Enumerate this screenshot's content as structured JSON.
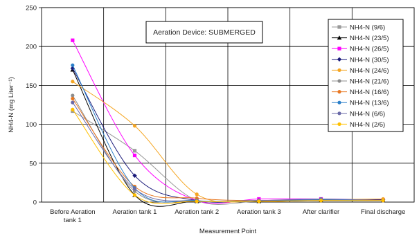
{
  "chart_data": {
    "type": "line",
    "annotation": "Aeration Device: SUBMERGED",
    "xlabel": "Measurement Point",
    "ylabel": "NH4-N (mg Liter⁻¹)",
    "ylim": [
      0,
      250
    ],
    "yticks": [
      0,
      50,
      100,
      150,
      200,
      250
    ],
    "grid": true,
    "legend_position": "top-right",
    "categories": [
      [
        "Before Aeration",
        "tank 1"
      ],
      [
        "Aeration tank 1"
      ],
      [
        "Aeration tank 2"
      ],
      [
        "Aeration tank 3"
      ],
      [
        "After clarifier"
      ],
      [
        "Final discharge"
      ]
    ],
    "series": [
      {
        "name": "NH4-N (9/6)",
        "color": "#9a9a9a",
        "marker": "square",
        "values": [
          117,
          66,
          2,
          1,
          2,
          2
        ]
      },
      {
        "name": "NH4-N (23/5)",
        "color": "#000000",
        "marker": "triangle",
        "values": [
          170,
          9,
          1,
          1,
          2,
          2
        ]
      },
      {
        "name": "NH4-N (26/5)",
        "color": "#ff00ff",
        "marker": "square",
        "values": [
          208,
          60,
          2,
          4,
          4,
          3
        ]
      },
      {
        "name": "NH4-N (30/5)",
        "color": "#1a1a7a",
        "marker": "diamond",
        "values": [
          172,
          34,
          2,
          2,
          3,
          3
        ]
      },
      {
        "name": "NH4-N (24/6)",
        "color": "#f5a623",
        "marker": "circle",
        "values": [
          155,
          98,
          10,
          1,
          3,
          4
        ]
      },
      {
        "name": "NH4-N (21/6)",
        "color": "#8c8c8c",
        "marker": "circle",
        "values": [
          137,
          14,
          1,
          2,
          3,
          2
        ]
      },
      {
        "name": "NH4-N (16/6)",
        "color": "#e87722",
        "marker": "circle",
        "values": [
          133,
          20,
          5,
          2,
          3,
          2
        ]
      },
      {
        "name": "NH4-N (13/6)",
        "color": "#2a7fc9",
        "marker": "circle",
        "values": [
          176,
          18,
          2,
          2,
          3,
          2
        ]
      },
      {
        "name": "NH4-N (6/6)",
        "color": "#6a6aa8",
        "marker": "circle",
        "values": [
          128,
          17,
          1,
          2,
          4,
          2
        ]
      },
      {
        "name": "NH4-N (2/6)",
        "color": "#ffc000",
        "marker": "circle",
        "values": [
          119,
          9,
          1,
          1,
          2,
          2
        ]
      }
    ]
  }
}
